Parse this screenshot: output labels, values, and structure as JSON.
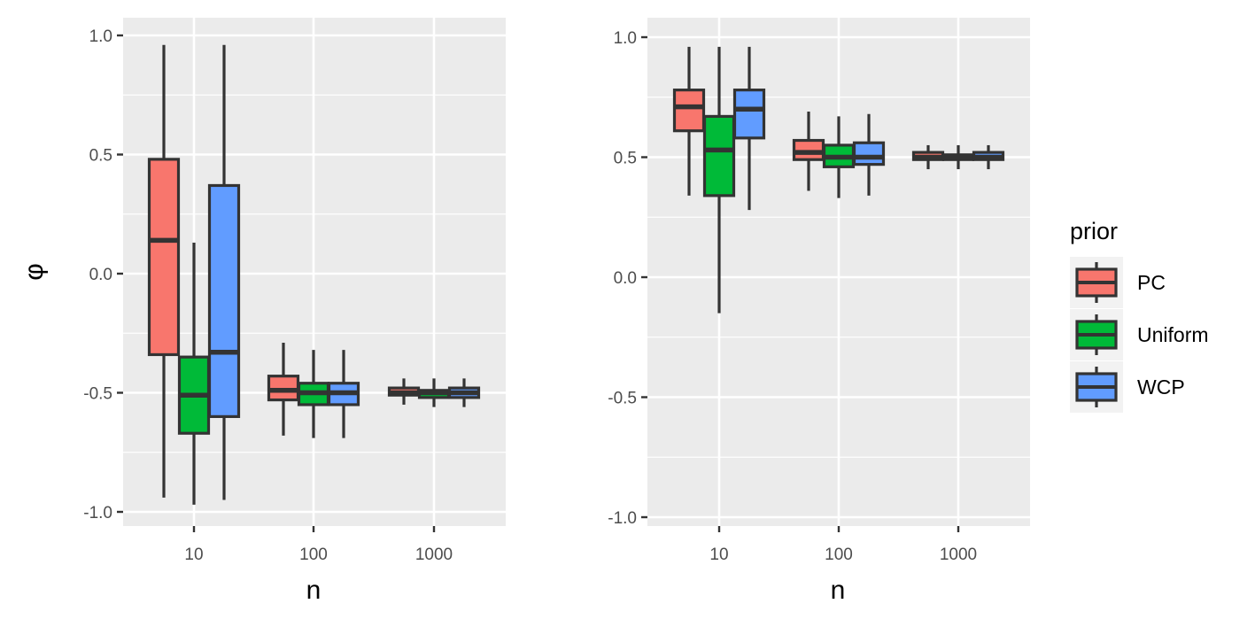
{
  "chart_data": [
    {
      "type": "box",
      "panel": "left",
      "categories": [
        "10",
        "100",
        "1000"
      ],
      "xlabel": "n",
      "ylabel": "φ",
      "ylim": [
        -1.05,
        1.0
      ],
      "yticks": [
        "1.0",
        "0.5",
        "0.0",
        "-0.5",
        "-1.0"
      ],
      "ytick_values": [
        1.0,
        0.5,
        0.0,
        -0.5,
        -1.0
      ],
      "grid": true,
      "series": [
        {
          "name": "PC",
          "boxes": [
            {
              "min": -0.94,
              "q1": -0.34,
              "median": 0.14,
              "q3": 0.48,
              "max": 0.96
            },
            {
              "min": -0.68,
              "q1": -0.53,
              "median": -0.49,
              "q3": -0.43,
              "max": -0.29
            },
            {
              "min": -0.55,
              "q1": -0.51,
              "median": -0.5,
              "q3": -0.48,
              "max": -0.44
            }
          ]
        },
        {
          "name": "Uniform",
          "boxes": [
            {
              "min": -0.97,
              "q1": -0.67,
              "median": -0.51,
              "q3": -0.35,
              "max": 0.13
            },
            {
              "min": -0.69,
              "q1": -0.55,
              "median": -0.5,
              "q3": -0.46,
              "max": -0.32
            },
            {
              "min": -0.56,
              "q1": -0.52,
              "median": -0.5,
              "q3": -0.49,
              "max": -0.44
            }
          ]
        },
        {
          "name": "WCP",
          "boxes": [
            {
              "min": -0.95,
              "q1": -0.6,
              "median": -0.33,
              "q3": 0.37,
              "max": 0.96
            },
            {
              "min": -0.69,
              "q1": -0.55,
              "median": -0.5,
              "q3": -0.46,
              "max": -0.32
            },
            {
              "min": -0.56,
              "q1": -0.52,
              "median": -0.5,
              "q3": -0.48,
              "max": -0.44
            }
          ]
        }
      ]
    },
    {
      "type": "box",
      "panel": "right",
      "categories": [
        "10",
        "100",
        "1000"
      ],
      "xlabel": "n",
      "ylabel": "",
      "ylim": [
        -1.05,
        1.05
      ],
      "yticks": [
        "1.0",
        "0.5",
        "0.0",
        "-0.5",
        "-1.0"
      ],
      "ytick_values": [
        1.0,
        0.5,
        0.0,
        -0.5,
        -1.0
      ],
      "grid": true,
      "series": [
        {
          "name": "PC",
          "boxes": [
            {
              "min": 0.34,
              "q1": 0.61,
              "median": 0.71,
              "q3": 0.78,
              "max": 0.96
            },
            {
              "min": 0.36,
              "q1": 0.49,
              "median": 0.52,
              "q3": 0.57,
              "max": 0.69
            },
            {
              "min": 0.45,
              "q1": 0.49,
              "median": 0.5,
              "q3": 0.52,
              "max": 0.55
            }
          ]
        },
        {
          "name": "Uniform",
          "boxes": [
            {
              "min": -0.15,
              "q1": 0.34,
              "median": 0.53,
              "q3": 0.67,
              "max": 0.96
            },
            {
              "min": 0.33,
              "q1": 0.46,
              "median": 0.5,
              "q3": 0.55,
              "max": 0.67
            },
            {
              "min": 0.45,
              "q1": 0.49,
              "median": 0.5,
              "q3": 0.51,
              "max": 0.55
            }
          ]
        },
        {
          "name": "WCP",
          "boxes": [
            {
              "min": 0.28,
              "q1": 0.58,
              "median": 0.7,
              "q3": 0.78,
              "max": 0.96
            },
            {
              "min": 0.34,
              "q1": 0.47,
              "median": 0.5,
              "q3": 0.56,
              "max": 0.68
            },
            {
              "min": 0.45,
              "q1": 0.49,
              "median": 0.5,
              "q3": 0.52,
              "max": 0.55
            }
          ]
        }
      ]
    }
  ],
  "legend": {
    "title": "prior",
    "placement": "right",
    "entries": [
      {
        "label": "PC",
        "color": "#F8766D"
      },
      {
        "label": "Uniform",
        "color": "#00BA38"
      },
      {
        "label": "WCP",
        "color": "#619CFF"
      }
    ]
  },
  "colors": {
    "panel_bg": "#EBEBEB",
    "grid": "#FFFFFF",
    "box_outline": "#333333",
    "tick_text": "#4D4D4D",
    "legend_key_bg": "#F2F2F2"
  }
}
